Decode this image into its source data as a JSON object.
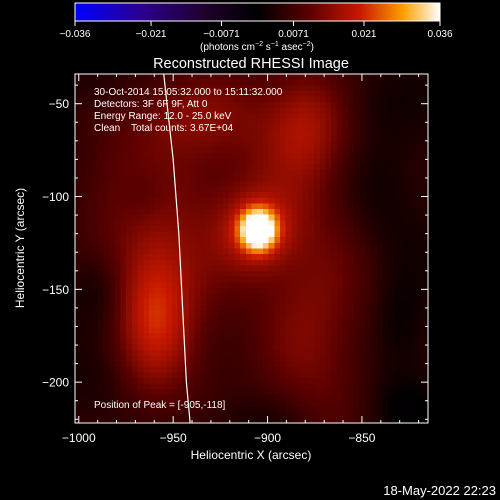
{
  "chart_data": {
    "type": "heatmap",
    "title": "Reconstructed RHESSI Image",
    "xlabel": "Heliocentric X (arcsec)",
    "ylabel": "Heliocentric Y (arcsec)",
    "xlim": [
      -1002,
      -815
    ],
    "ylim": [
      -222,
      -34
    ],
    "x_ticks": [
      -1000,
      -950,
      -900,
      -850
    ],
    "x_tick_labels": [
      "−1000",
      "−950",
      "−900",
      "−850"
    ],
    "y_ticks": [
      -50,
      -100,
      -150,
      -200
    ],
    "y_tick_labels": [
      "−50",
      "−100",
      "−150",
      "−200"
    ],
    "colorbar": {
      "range": [
        -0.036,
        0.036
      ],
      "ticks": [
        -0.036,
        -0.021,
        -0.0071,
        0.0071,
        0.021,
        0.036
      ],
      "tick_labels": [
        "−0.036",
        "−0.021",
        "−0.0071",
        "0.0071",
        "0.021",
        "0.036"
      ],
      "units_text": "(photons cm",
      "units_exp1": "−2",
      "units_mid": " s",
      "units_exp2": "−1",
      "units_mid2": " asec",
      "units_exp3": "−2",
      "units_end": ")"
    },
    "peak": {
      "x": -905,
      "y": -118,
      "value": 0.036
    },
    "limb_arc_points": [
      [
        -955,
        -34
      ],
      [
        -950,
        -80
      ],
      [
        -947,
        -120
      ],
      [
        -945,
        -160
      ],
      [
        -943,
        -200
      ],
      [
        -941,
        -222
      ]
    ],
    "features": [
      {
        "x": -905,
        "y": -118,
        "sx": 6,
        "sy": 7,
        "a": 0.033
      },
      {
        "x": -905,
        "y": -118,
        "sx": 14,
        "sy": 15,
        "a": 0.012
      },
      {
        "x": -960,
        "y": -160,
        "sx": 14,
        "sy": 32,
        "a": 0.012
      },
      {
        "x": -950,
        "y": -150,
        "sx": 28,
        "sy": 50,
        "a": 0.006
      },
      {
        "x": -880,
        "y": -60,
        "sx": 16,
        "sy": 22,
        "a": 0.01
      },
      {
        "x": -875,
        "y": -170,
        "sx": 22,
        "sy": 50,
        "a": 0.009
      },
      {
        "x": -945,
        "y": -55,
        "sx": 26,
        "sy": 16,
        "a": 0.006
      },
      {
        "x": -915,
        "y": -80,
        "sx": 40,
        "sy": 40,
        "a": 0.005
      },
      {
        "x": -985,
        "y": -95,
        "sx": 16,
        "sy": 22,
        "a": 0.004
      },
      {
        "x": -990,
        "y": -150,
        "sx": 10,
        "sy": 14,
        "a": -0.004
      },
      {
        "x": -965,
        "y": -100,
        "sx": 10,
        "sy": 12,
        "a": -0.003
      },
      {
        "x": -840,
        "y": -100,
        "sx": 14,
        "sy": 28,
        "a": -0.003
      },
      {
        "x": -830,
        "y": -215,
        "sx": 14,
        "sy": 14,
        "a": -0.004
      },
      {
        "x": -830,
        "y": -170,
        "sx": 10,
        "sy": 18,
        "a": -0.004
      },
      {
        "x": -905,
        "y": -220,
        "sx": 20,
        "sy": 10,
        "a": -0.003
      },
      {
        "x": -990,
        "y": -205,
        "sx": 12,
        "sy": 14,
        "a": -0.002
      },
      {
        "x": -845,
        "y": -50,
        "sx": 14,
        "sy": 12,
        "a": -0.002
      },
      {
        "x": -990,
        "y": -40,
        "sx": 12,
        "sy": 12,
        "a": -0.002
      }
    ],
    "annotations": {
      "time_range": "30-Oct-2014 15:05:32.000 to 15:11:32.000",
      "detectors": "Detectors: 3F 6F 9F, Att 0",
      "energy": "Energy Range: 12.0 - 25.0 keV",
      "clean": "Clean    Total counts: 3.67E+04",
      "peak_position": "Position of Peak = [-905,-118]"
    },
    "timestamp": "18-May-2022 22:23"
  }
}
